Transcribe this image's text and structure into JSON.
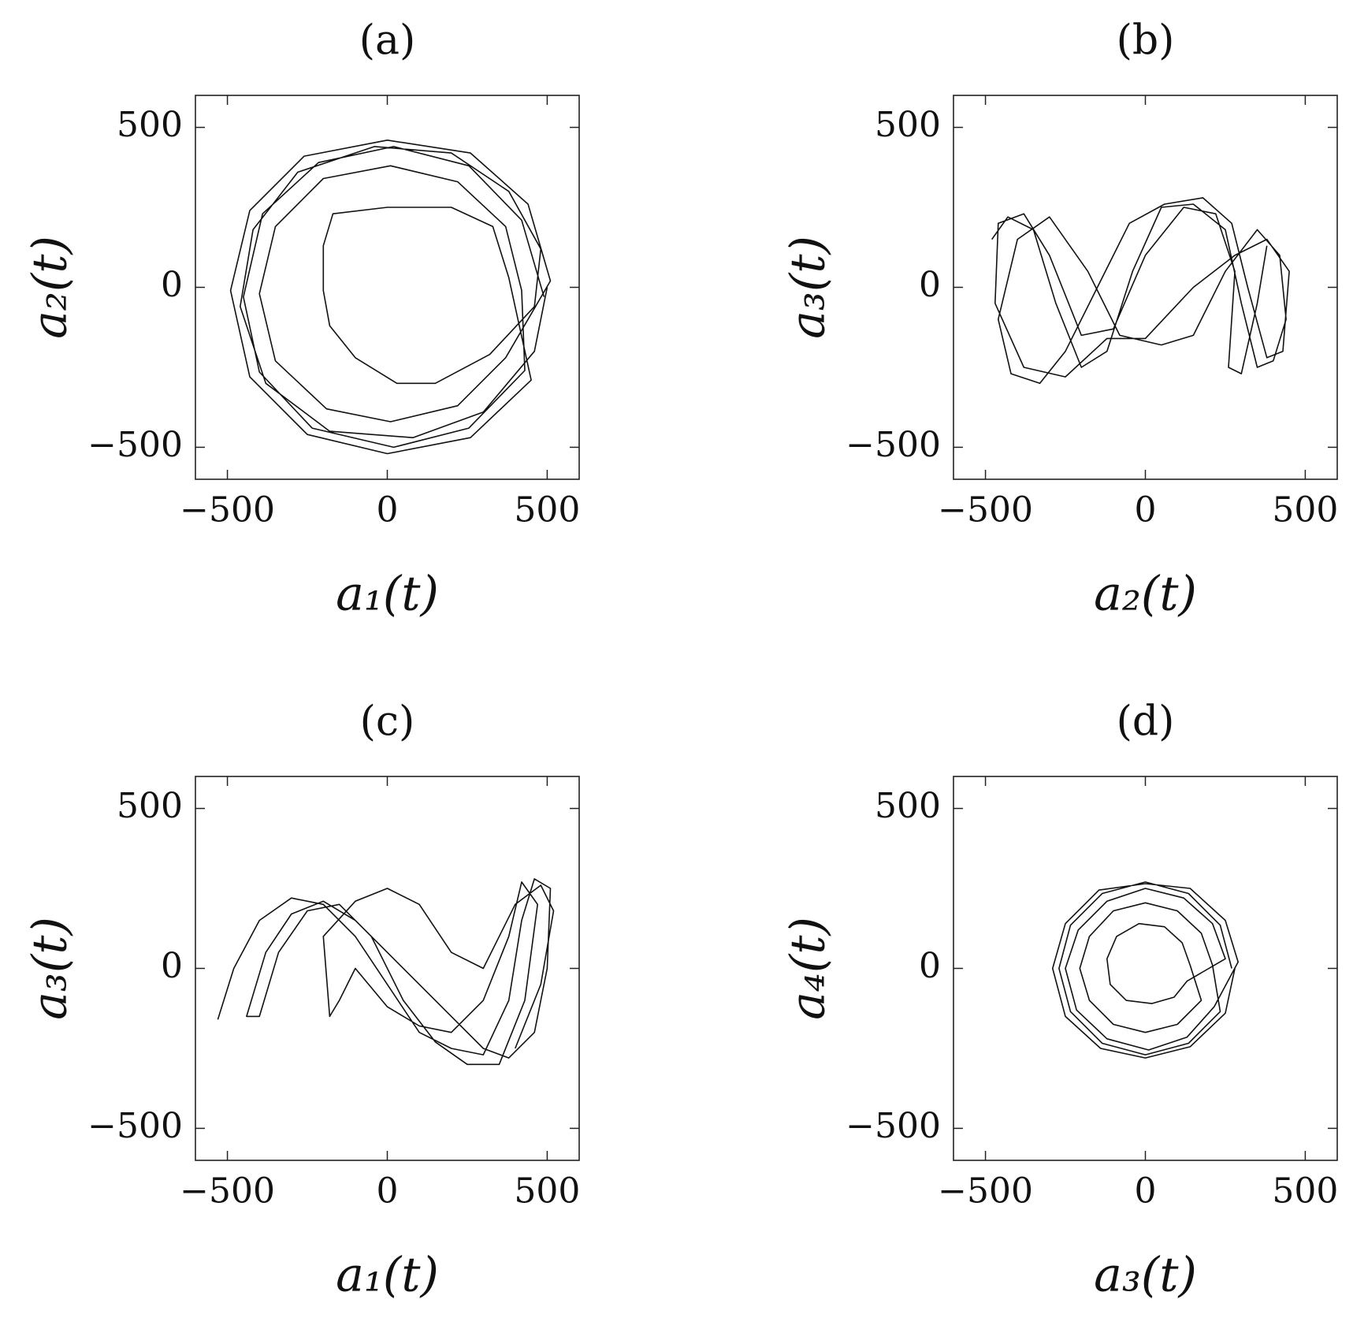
{
  "chart_data": [
    {
      "type": "line",
      "title": "(a)",
      "x_label": "a₁(t)",
      "y_label": "a₂(t)",
      "xlim": [
        -600,
        600
      ],
      "ylim": [
        -600,
        600
      ],
      "xticks": [
        {
          "value": -500,
          "label": "−500"
        },
        0,
        500
      ],
      "yticks": [
        {
          "value": -500,
          "label": "−500"
        },
        0,
        500
      ],
      "x": [
        490,
        420,
        255,
        20,
        -215,
        -390,
        -450,
        -400,
        -235,
        20,
        255,
        430,
        420,
        370,
        220,
        10,
        -200,
        -350,
        -400,
        -350,
        -190,
        10,
        220,
        370,
        510,
        440,
        260,
        0,
        -260,
        -430,
        -490,
        -430,
        -250,
        0,
        260,
        450,
        380,
        330,
        200,
        0,
        -170,
        -200,
        -200,
        -180,
        -100,
        30,
        150,
        320,
        460,
        480,
        380,
        200,
        -40,
        -280,
        -420,
        -460,
        -380,
        -180,
        80,
        300,
        460,
        500
      ],
      "series": [
        {
          "color": "#111111",
          "values": [
            -30,
            210,
            380,
            440,
            390,
            230,
            -30,
            -265,
            -440,
            -500,
            -440,
            -260,
            -10,
            190,
            330,
            380,
            340,
            190,
            -20,
            -230,
            -380,
            -420,
            -370,
            -220,
            20,
            260,
            420,
            460,
            410,
            240,
            -10,
            -280,
            -460,
            -520,
            -470,
            -290,
            30,
            190,
            250,
            250,
            230,
            130,
            -10,
            -120,
            -220,
            -300,
            -300,
            -210,
            -60,
            120,
            300,
            420,
            440,
            360,
            180,
            -60,
            -300,
            -450,
            -470,
            -390,
            -200,
            0
          ]
        }
      ]
    },
    {
      "type": "line",
      "title": "(b)",
      "x_label": "a₂(t)",
      "y_label": "a₃(t)",
      "xlim": [
        -600,
        600
      ],
      "ylim": [
        -600,
        600
      ],
      "xticks": [
        {
          "value": -500,
          "label": "−500"
        },
        0,
        500
      ],
      "yticks": [
        {
          "value": -500,
          "label": "−500"
        },
        0,
        500
      ],
      "x": [
        -480,
        -430,
        -350,
        -280,
        -200,
        -120,
        -40,
        50,
        150,
        250,
        300,
        350,
        400,
        440,
        420,
        350,
        250,
        150,
        50,
        -80,
        -180,
        -300,
        -400,
        -460,
        -420,
        -330,
        -250,
        -150,
        -50,
        60,
        180,
        270,
        320,
        380,
        430,
        450,
        380,
        280,
        150,
        0,
        -120,
        -250,
        -380,
        -470,
        -460,
        -380,
        -300,
        -200,
        -100,
        0,
        120,
        220,
        280,
        260,
        300,
        350,
        380
      ],
      "series": [
        {
          "color": "#111111",
          "values": [
            150,
            220,
            180,
            -50,
            -250,
            -200,
            50,
            250,
            260,
            180,
            -50,
            -250,
            -230,
            -100,
            100,
            180,
            50,
            -150,
            -180,
            -150,
            50,
            220,
            150,
            -100,
            -270,
            -300,
            -200,
            0,
            200,
            260,
            280,
            200,
            0,
            -220,
            -200,
            50,
            150,
            100,
            0,
            -160,
            -160,
            -280,
            -250,
            -50,
            200,
            230,
            100,
            -150,
            -130,
            100,
            250,
            230,
            50,
            -250,
            -270,
            -50,
            130
          ]
        }
      ]
    },
    {
      "type": "line",
      "title": "(c)",
      "x_label": "a₁(t)",
      "y_label": "a₃(t)",
      "xlim": [
        -600,
        600
      ],
      "ylim": [
        -600,
        600
      ],
      "xticks": [
        {
          "value": -500,
          "label": "−500"
        },
        0,
        500
      ],
      "yticks": [
        {
          "value": -500,
          "label": "−500"
        },
        0,
        500
      ],
      "x": [
        -530,
        -480,
        -400,
        -300,
        -200,
        -100,
        0,
        100,
        200,
        300,
        380,
        420,
        460,
        510,
        500,
        460,
        380,
        300,
        200,
        100,
        0,
        -100,
        -200,
        -300,
        -380,
        -440,
        -400,
        -340,
        -250,
        -150,
        -50,
        50,
        150,
        250,
        350,
        430,
        470,
        420,
        380,
        300,
        200,
        100,
        0,
        -100,
        -150,
        -180,
        -200,
        -100,
        0,
        100,
        200,
        300,
        400,
        480,
        520,
        480,
        400
      ],
      "series": [
        {
          "color": "#111111",
          "values": [
            -160,
            0,
            150,
            220,
            200,
            100,
            -50,
            -200,
            -250,
            -270,
            -100,
            150,
            280,
            250,
            0,
            -200,
            -280,
            -250,
            -150,
            -50,
            50,
            150,
            210,
            170,
            50,
            -150,
            -150,
            50,
            180,
            200,
            100,
            -100,
            -230,
            -300,
            -300,
            -100,
            200,
            270,
            100,
            -100,
            -200,
            -180,
            -120,
            0,
            -100,
            -150,
            100,
            210,
            250,
            200,
            50,
            0,
            200,
            260,
            180,
            -50,
            -250
          ]
        }
      ]
    },
    {
      "type": "line",
      "title": "(d)",
      "x_label": "a₃(t)",
      "y_label": "a₄(t)",
      "xlim": [
        -600,
        600
      ],
      "ylim": [
        -600,
        600
      ],
      "xticks": [
        {
          "value": -500,
          "label": "−500"
        },
        0,
        500
      ],
      "yticks": [
        {
          "value": -500,
          "label": "−500"
        },
        0,
        500
      ],
      "x": [
        270,
        234,
        135,
        0,
        -135,
        -234,
        -270,
        -234,
        -135,
        0,
        135,
        234,
        210,
        175,
        100,
        0,
        -100,
        -175,
        -205,
        -175,
        -100,
        0,
        100,
        175,
        140,
        115,
        60,
        -20,
        -90,
        -120,
        -110,
        -60,
        20,
        90,
        130,
        250,
        210,
        120,
        0,
        -120,
        -210,
        -250,
        -215,
        -120,
        10,
        130,
        215,
        290,
        250,
        140,
        0,
        -145,
        -250,
        -290,
        -250,
        -140,
        0,
        140,
        250,
        280
      ],
      "series": [
        {
          "color": "#111111",
          "values": [
            0,
            135,
            234,
            270,
            234,
            135,
            0,
            -135,
            -234,
            -270,
            -234,
            -135,
            10,
            110,
            180,
            205,
            180,
            100,
            0,
            -100,
            -175,
            -200,
            -175,
            -100,
            10,
            80,
            130,
            140,
            100,
            30,
            -50,
            -100,
            -110,
            -90,
            -40,
            30,
            140,
            220,
            250,
            210,
            120,
            0,
            -130,
            -220,
            -255,
            -215,
            -120,
            20,
            150,
            250,
            265,
            245,
            140,
            0,
            -150,
            -250,
            -280,
            -245,
            -140,
            0
          ]
        }
      ]
    }
  ]
}
